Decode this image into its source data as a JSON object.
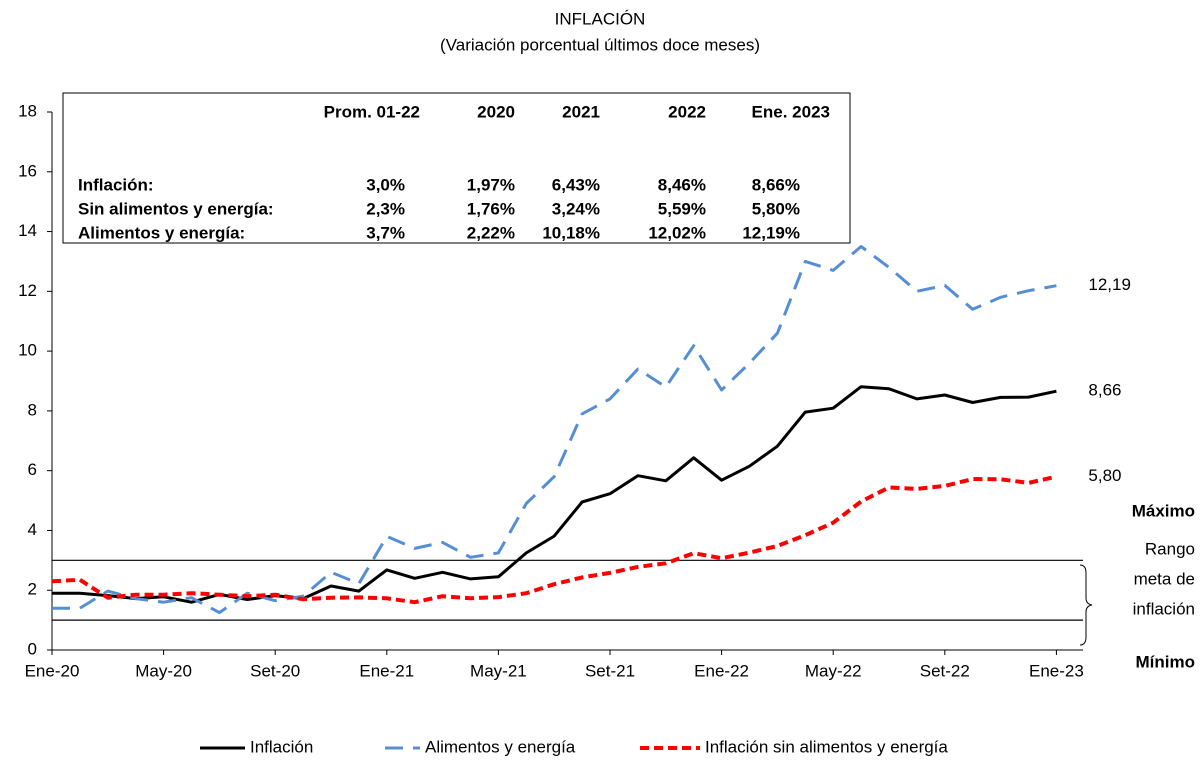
{
  "chart_data": {
    "type": "line",
    "title": "INFLACIÓN",
    "subtitle": "(Variación porcentual últimos doce meses)",
    "categories": [
      "Ene-20",
      null,
      null,
      null,
      "May-20",
      null,
      null,
      null,
      "Set-20",
      null,
      null,
      null,
      "Ene-21",
      null,
      null,
      null,
      "May-21",
      null,
      null,
      null,
      "Set-21",
      null,
      null,
      null,
      "Ene-22",
      null,
      null,
      null,
      "May-22",
      null,
      null,
      null,
      "Set-22",
      null,
      null,
      null,
      "Ene-23"
    ],
    "series": [
      {
        "name": "Inflación",
        "color": "#000000",
        "style": "solid",
        "values": [
          1.9,
          1.9,
          1.82,
          1.72,
          1.78,
          1.6,
          1.86,
          1.69,
          1.82,
          1.72,
          2.14,
          1.97,
          2.68,
          2.4,
          2.6,
          2.38,
          2.45,
          3.25,
          3.81,
          4.95,
          5.23,
          5.83,
          5.66,
          6.43,
          5.68,
          6.15,
          6.82,
          7.96,
          8.09,
          8.81,
          8.74,
          8.4,
          8.53,
          8.28,
          8.45,
          8.46,
          8.66
        ],
        "value_labels": [
          null,
          null,
          null,
          null,
          null,
          null,
          null,
          null,
          null,
          null,
          null,
          null,
          null,
          null,
          null,
          null,
          null,
          null,
          null,
          null,
          null,
          null,
          null,
          null,
          null,
          null,
          null,
          null,
          null,
          null,
          null,
          null,
          null,
          null,
          null,
          null,
          "8,66"
        ]
      },
      {
        "name": "Alimentos y energía",
        "color": "#558ed5",
        "style": "long-dash",
        "values": [
          1.4,
          1.4,
          1.97,
          1.72,
          1.6,
          1.75,
          1.25,
          1.9,
          1.65,
          1.8,
          2.6,
          2.22,
          3.8,
          3.4,
          3.6,
          3.1,
          3.25,
          4.9,
          5.8,
          7.9,
          8.4,
          9.4,
          8.8,
          10.18,
          8.7,
          9.6,
          10.6,
          13.0,
          12.7,
          13.5,
          12.8,
          12.0,
          12.2,
          11.4,
          11.8,
          12.02,
          12.19
        ],
        "value_labels": [
          null,
          null,
          null,
          null,
          null,
          null,
          null,
          null,
          null,
          null,
          null,
          null,
          null,
          null,
          null,
          null,
          null,
          null,
          null,
          null,
          null,
          null,
          null,
          null,
          null,
          null,
          null,
          null,
          null,
          null,
          null,
          null,
          null,
          null,
          null,
          null,
          "12,19"
        ]
      },
      {
        "name": "Inflación sin alimentos y energía",
        "color": "#ff0000",
        "style": "short-dash",
        "values": [
          2.3,
          2.35,
          1.75,
          1.85,
          1.85,
          1.9,
          1.85,
          1.8,
          1.85,
          1.7,
          1.75,
          1.76,
          1.73,
          1.6,
          1.8,
          1.73,
          1.77,
          1.9,
          2.2,
          2.43,
          2.58,
          2.78,
          2.9,
          3.24,
          3.07,
          3.26,
          3.48,
          3.84,
          4.26,
          4.97,
          5.44,
          5.39,
          5.49,
          5.72,
          5.71,
          5.59,
          5.8
        ],
        "value_labels": [
          null,
          null,
          null,
          null,
          null,
          null,
          null,
          null,
          null,
          null,
          null,
          null,
          null,
          null,
          null,
          null,
          null,
          null,
          null,
          null,
          null,
          null,
          null,
          null,
          null,
          null,
          null,
          null,
          null,
          null,
          null,
          null,
          null,
          null,
          null,
          null,
          "5,80"
        ]
      }
    ],
    "ylim": [
      0,
      18
    ],
    "yticks": [
      0,
      2,
      4,
      6,
      8,
      10,
      12,
      14,
      16,
      18
    ],
    "grid": false,
    "target_range": [
      1,
      3
    ],
    "annotations": {
      "max": "Máximo",
      "range": [
        "Rango",
        "meta de",
        "inflación"
      ],
      "min": "Mínimo"
    },
    "table": {
      "columns": [
        "Prom. 01-22",
        "2020",
        "2021",
        "2022",
        "Ene. 2023"
      ],
      "rows": [
        [
          "Inflación:",
          "3,0%",
          "1,97%",
          "6,43%",
          "8,46%",
          "8,66%"
        ],
        [
          "Sin alimentos y energía:",
          "2,3%",
          "1,76%",
          "3,24%",
          "5,59%",
          "5,80%"
        ],
        [
          "Alimentos y energía:",
          "3,7%",
          "2,22%",
          "10,18%",
          "12,02%",
          "12,19%"
        ]
      ]
    }
  }
}
